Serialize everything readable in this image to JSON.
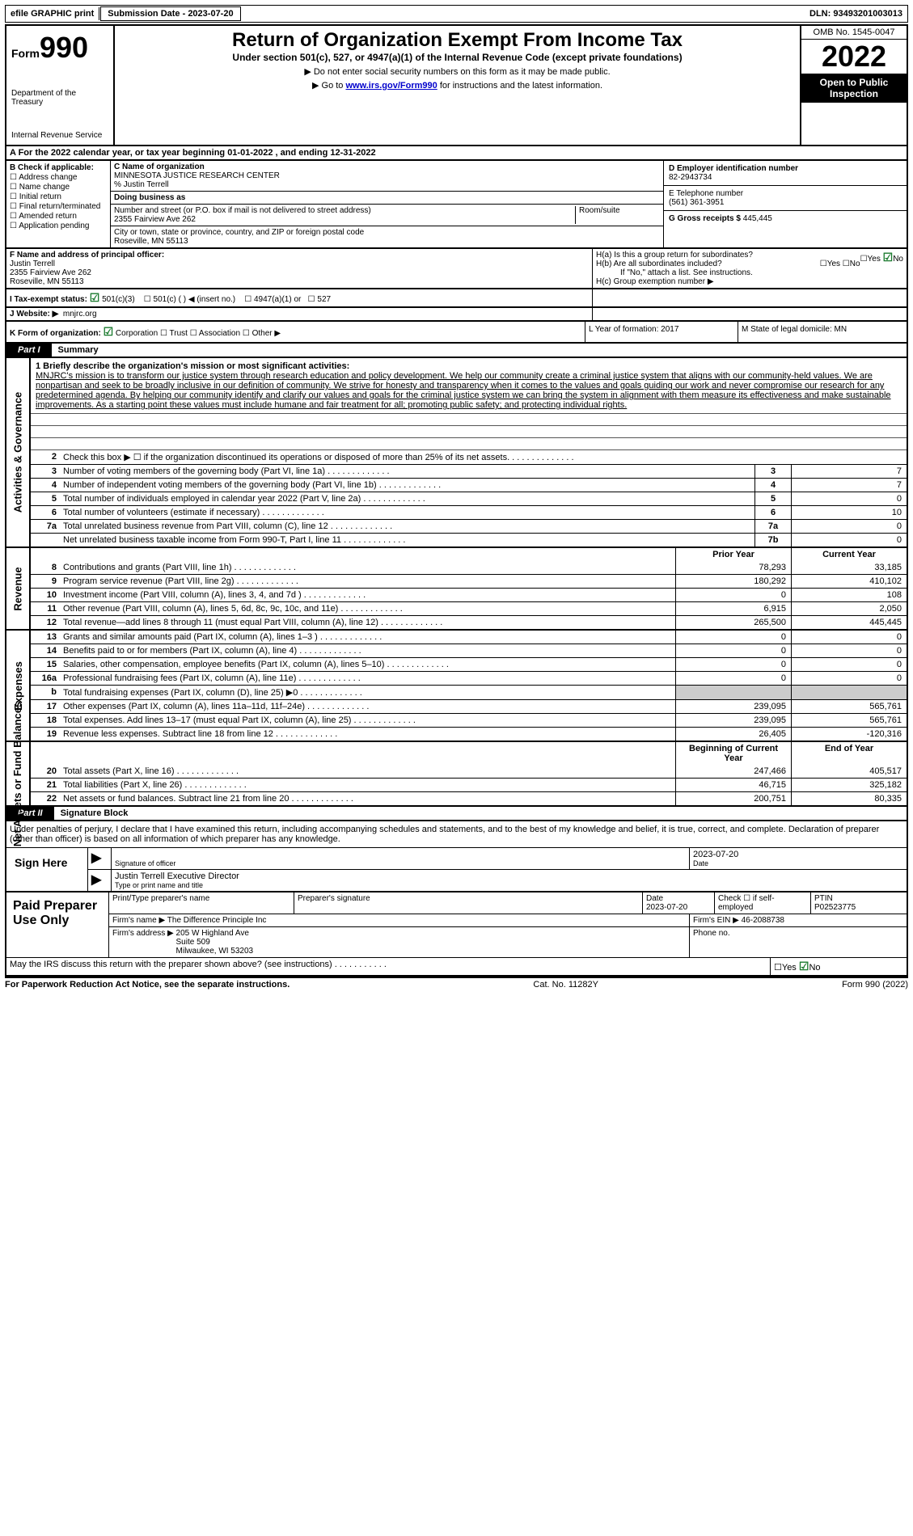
{
  "topbar": {
    "print": "efile GRAPHIC print",
    "submission": "Submission Date - 2023-07-20",
    "dln": "DLN: 93493201003013"
  },
  "header": {
    "form": "Form",
    "form_num": "990",
    "dept": "Department of the Treasury",
    "irs": "Internal Revenue Service",
    "title": "Return of Organization Exempt From Income Tax",
    "sub": "Under section 501(c), 527, or 4947(a)(1) of the Internal Revenue Code (except private foundations)",
    "note1": "▶ Do not enter social security numbers on this form as it may be made public.",
    "note2a": "▶ Go to ",
    "note2_link": "www.irs.gov/Form990",
    "note2b": " for instructions and the latest information.",
    "omb": "OMB No. 1545-0047",
    "year": "2022",
    "open": "Open to Public Inspection"
  },
  "sectionA": "A For the 2022 calendar year, or tax year beginning 01-01-2022   , and ending 12-31-2022",
  "colB": {
    "title": "B Check if applicable:",
    "items": [
      "Address change",
      "Name change",
      "Initial return",
      "Final return/terminated",
      "Amended return",
      "Application pending"
    ]
  },
  "colC": {
    "name_label": "C Name of organization",
    "name": "MINNESOTA JUSTICE RESEARCH CENTER",
    "care": "% Justin Terrell",
    "dba_label": "Doing business as",
    "street_label": "Number and street (or P.O. box if mail is not delivered to street address)",
    "room_label": "Room/suite",
    "street": "2355 Fairview Ave 262",
    "city_label": "City or town, state or province, country, and ZIP or foreign postal code",
    "city": "Roseville, MN  55113"
  },
  "colD": {
    "label": "D Employer identification number",
    "value": "82-2943734"
  },
  "colE": {
    "label": "E Telephone number",
    "value": "(561) 361-3951"
  },
  "colG": {
    "label": "G Gross receipts $",
    "value": "445,445"
  },
  "colF": {
    "label": "F  Name and address of principal officer:",
    "name": "Justin Terrell",
    "addr1": "2355 Fairview Ave 262",
    "addr2": "Roseville, MN  55113"
  },
  "colH": {
    "a": "H(a)  Is this a group return for subordinates?",
    "b": "H(b)  Are all subordinates included?",
    "note": "If \"No,\" attach a list. See instructions.",
    "c": "H(c)  Group exemption number ▶",
    "yes": "Yes",
    "no": "No"
  },
  "rowI": {
    "label": "I   Tax-exempt status:",
    "o1": "501(c)(3)",
    "o2": "501(c) (  ) ◀ (insert no.)",
    "o3": "4947(a)(1) or",
    "o4": "527"
  },
  "rowJ": {
    "label": "J  Website: ▶",
    "value": "mnjrc.org"
  },
  "rowK": {
    "label": "K Form of organization:",
    "corp": "Corporation",
    "trust": "Trust",
    "assoc": "Association",
    "other": "Other ▶",
    "L": "L Year of formation: 2017",
    "M": "M State of legal domicile: MN"
  },
  "part1": {
    "tab": "Part I",
    "title": "Summary"
  },
  "side_labels": {
    "ag": "Activities & Governance",
    "rev": "Revenue",
    "exp": "Expenses",
    "net": "Net Assets or Fund Balances"
  },
  "mission": {
    "q": "1   Briefly describe the organization's mission or most significant activities:",
    "text": "MNJRC's mission is to transform our justice system through research education and policy development. We help our community create a criminal justice system that aligns with our community-held values. We are nonpartisan and seek to be broadly inclusive in our definition of community. We strive for honesty and transparency when it comes to the values and goals guiding our work and never compromise our research for any predetermined agenda. By helping our community identify and clarify our values and goals for the criminal justice system we can bring the system in alignment with them measure its effectiveness and make sustainable improvements. As a starting point these values must include humane and fair treatment for all; promoting public safety; and protecting individual rights."
  },
  "summary_rows": [
    {
      "n": "2",
      "d": "Check this box ▶ ☐ if the organization discontinued its operations or disposed of more than 25% of its net assets."
    },
    {
      "n": "3",
      "d": "Number of voting members of the governing body (Part VI, line 1a)",
      "nb": "3",
      "v": "7"
    },
    {
      "n": "4",
      "d": "Number of independent voting members of the governing body (Part VI, line 1b)",
      "nb": "4",
      "v": "7"
    },
    {
      "n": "5",
      "d": "Total number of individuals employed in calendar year 2022 (Part V, line 2a)",
      "nb": "5",
      "v": "0"
    },
    {
      "n": "6",
      "d": "Total number of volunteers (estimate if necessary)",
      "nb": "6",
      "v": "10"
    },
    {
      "n": "7a",
      "d": "Total unrelated business revenue from Part VIII, column (C), line 12",
      "nb": "7a",
      "v": "0"
    },
    {
      "n": "",
      "d": "Net unrelated business taxable income from Form 990-T, Part I, line 11",
      "nb": "7b",
      "v": "0"
    }
  ],
  "yr_headers": {
    "prior": "Prior Year",
    "current": "Current Year",
    "boy": "Beginning of Current Year",
    "eoy": "End of Year"
  },
  "revenue": [
    {
      "n": "8",
      "d": "Contributions and grants (Part VIII, line 1h)",
      "p": "78,293",
      "c": "33,185"
    },
    {
      "n": "9",
      "d": "Program service revenue (Part VIII, line 2g)",
      "p": "180,292",
      "c": "410,102"
    },
    {
      "n": "10",
      "d": "Investment income (Part VIII, column (A), lines 3, 4, and 7d )",
      "p": "0",
      "c": "108"
    },
    {
      "n": "11",
      "d": "Other revenue (Part VIII, column (A), lines 5, 6d, 8c, 9c, 10c, and 11e)",
      "p": "6,915",
      "c": "2,050"
    },
    {
      "n": "12",
      "d": "Total revenue—add lines 8 through 11 (must equal Part VIII, column (A), line 12)",
      "p": "265,500",
      "c": "445,445"
    }
  ],
  "expenses": [
    {
      "n": "13",
      "d": "Grants and similar amounts paid (Part IX, column (A), lines 1–3 )",
      "p": "0",
      "c": "0"
    },
    {
      "n": "14",
      "d": "Benefits paid to or for members (Part IX, column (A), line 4)",
      "p": "0",
      "c": "0"
    },
    {
      "n": "15",
      "d": "Salaries, other compensation, employee benefits (Part IX, column (A), lines 5–10)",
      "p": "0",
      "c": "0"
    },
    {
      "n": "16a",
      "d": "Professional fundraising fees (Part IX, column (A), line 11e)",
      "p": "0",
      "c": "0"
    },
    {
      "n": "b",
      "d": "Total fundraising expenses (Part IX, column (D), line 25) ▶0",
      "p": "",
      "c": "",
      "grey": true
    },
    {
      "n": "17",
      "d": "Other expenses (Part IX, column (A), lines 11a–11d, 11f–24e)",
      "p": "239,095",
      "c": "565,761"
    },
    {
      "n": "18",
      "d": "Total expenses. Add lines 13–17 (must equal Part IX, column (A), line 25)",
      "p": "239,095",
      "c": "565,761"
    },
    {
      "n": "19",
      "d": "Revenue less expenses. Subtract line 18 from line 12",
      "p": "26,405",
      "c": "-120,316"
    }
  ],
  "netassets": [
    {
      "n": "20",
      "d": "Total assets (Part X, line 16)",
      "p": "247,466",
      "c": "405,517"
    },
    {
      "n": "21",
      "d": "Total liabilities (Part X, line 26)",
      "p": "46,715",
      "c": "325,182"
    },
    {
      "n": "22",
      "d": "Net assets or fund balances. Subtract line 21 from line 20",
      "p": "200,751",
      "c": "80,335"
    }
  ],
  "part2": {
    "tab": "Part II",
    "title": "Signature Block"
  },
  "perjury": "Under penalties of perjury, I declare that I have examined this return, including accompanying schedules and statements, and to the best of my knowledge and belief, it is true, correct, and complete. Declaration of preparer (other than officer) is based on all information of which preparer has any knowledge.",
  "sign": {
    "here": "Sign Here",
    "sig": "Signature of officer",
    "date_lbl": "Date",
    "date": "2023-07-20",
    "name": "Justin Terrell  Executive Director",
    "type": "Type or print name and title"
  },
  "prep": {
    "label": "Paid Preparer Use Only",
    "h1": "Print/Type preparer's name",
    "h2": "Preparer's signature",
    "h3": "Date",
    "h3v": "2023-07-20",
    "h4": "Check ☐ if self-employed",
    "h5": "PTIN",
    "ptin": "P02523775",
    "firm_lbl": "Firm's name    ▶",
    "firm": "The Difference Principle Inc",
    "ein_lbl": "Firm's EIN ▶",
    "ein": "46-2088738",
    "addr_lbl": "Firm's address ▶",
    "addr": "205 W Highland Ave\nSuite 509\nMilwaukee, WI  53203",
    "phone_lbl": "Phone no."
  },
  "discuss": "May the IRS discuss this return with the preparer shown above? (see instructions)",
  "footer": {
    "left": "For Paperwork Reduction Act Notice, see the separate instructions.",
    "mid": "Cat. No. 11282Y",
    "right": "Form 990 (2022)"
  }
}
